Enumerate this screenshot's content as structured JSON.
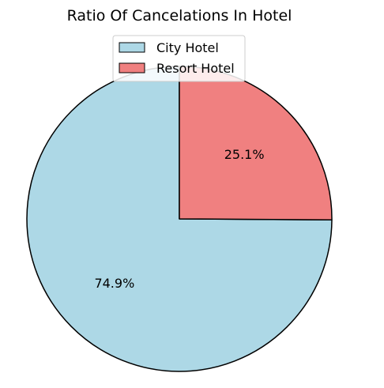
{
  "chart_data": {
    "type": "pie",
    "title": "Ratio Of Cancelations In Hotel",
    "categories": [
      "City Hotel",
      "Resort Hotel"
    ],
    "values": [
      74.9,
      25.1
    ],
    "labels": [
      "74.9%",
      "25.1%"
    ],
    "colors": [
      "#add8e6",
      "#f08080"
    ],
    "edge_color": "#000000",
    "start_angle": 90,
    "legend": {
      "placement": "top-center",
      "entries": [
        "City Hotel",
        "Resort Hotel"
      ]
    }
  }
}
